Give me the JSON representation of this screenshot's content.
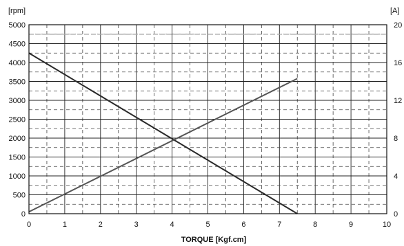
{
  "chart_data": {
    "type": "line",
    "xlabel": "TORQUE [Kgf.cm]",
    "y_left_unit": "[rpm]",
    "y_right_unit": "[A]",
    "xlim": [
      0,
      10
    ],
    "ylim_left": [
      0,
      5000
    ],
    "ylim_right": [
      0,
      20
    ],
    "x_ticks": [
      "0",
      "1",
      "2",
      "3",
      "4",
      "5",
      "6",
      "7",
      "8",
      "9",
      "10"
    ],
    "y_left_ticks": [
      "0",
      "500",
      "1000",
      "1500",
      "2000",
      "2500",
      "3000",
      "3500",
      "4000",
      "4500",
      "5000"
    ],
    "y_right_ticks": [
      "0",
      "4",
      "8",
      "12",
      "16",
      "20"
    ],
    "y_left_tick_values": [
      0,
      500,
      1000,
      1500,
      2000,
      2500,
      3000,
      3500,
      4000,
      4500,
      5000
    ],
    "y_right_tick_values": [
      0,
      4,
      8,
      12,
      16,
      20
    ],
    "grid": true,
    "series": [
      {
        "axis": "left",
        "x": [
          0,
          7.5
        ],
        "y": [
          4250,
          0
        ],
        "color": "#2a2a2a"
      },
      {
        "axis": "right",
        "x": [
          0,
          7.5
        ],
        "y": [
          0.2,
          14.3
        ],
        "color": "#555555"
      }
    ],
    "reference_line": {
      "axis": "left",
      "y": 4750,
      "color": "#aaaaaa"
    }
  }
}
